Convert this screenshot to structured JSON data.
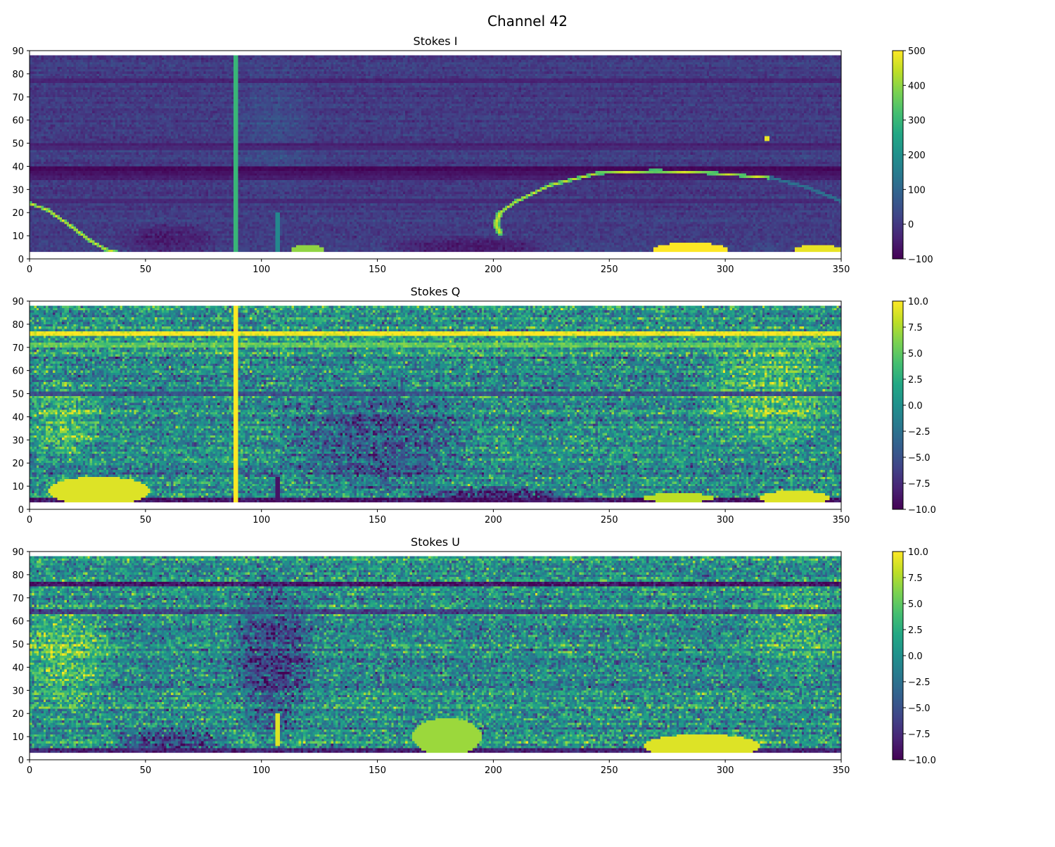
{
  "figure": {
    "suptitle": "Channel 42"
  },
  "chart_data": [
    {
      "type": "heatmap",
      "title": "Stokes I",
      "xlabel": "",
      "ylabel": "",
      "xlim": [
        0,
        350
      ],
      "ylim": [
        0,
        90
      ],
      "x_ticks": [
        0,
        50,
        100,
        150,
        200,
        250,
        300,
        350
      ],
      "y_ticks": [
        0,
        10,
        20,
        30,
        40,
        50,
        60,
        70,
        80,
        90
      ],
      "data_extent": {
        "x": [
          0,
          350
        ],
        "y": [
          3,
          88
        ]
      },
      "grid": false,
      "colormap": "viridis",
      "colorbar": {
        "range": [
          -100,
          500
        ],
        "ticks": [
          -100,
          0,
          100,
          200,
          300,
          400,
          500
        ],
        "tick_labels": [
          "−100",
          "0",
          "100",
          "200",
          "300",
          "400",
          "500"
        ]
      },
      "features": {
        "base_value": 5,
        "band_rows": [
          {
            "y": 38,
            "value": -90
          },
          {
            "y": 39,
            "value": -90
          },
          {
            "y": 37,
            "value": -70
          },
          {
            "y": 49,
            "value": -50
          },
          {
            "y": 48,
            "value": -30
          },
          {
            "y": 77,
            "value": -40
          },
          {
            "y": 35,
            "value": -50
          },
          {
            "y": 25,
            "value": -30
          }
        ],
        "arcs": [
          {
            "points": [
              [
                0,
                24
              ],
              [
                8,
                21
              ],
              [
                18,
                14
              ],
              [
                26,
                8
              ],
              [
                33,
                4
              ],
              [
                37,
                3
              ]
            ],
            "value": 480
          },
          {
            "points": [
              [
                203,
                11
              ],
              [
                201,
                15
              ],
              [
                203,
                20
              ],
              [
                210,
                25
              ],
              [
                225,
                32
              ],
              [
                245,
                37
              ],
              [
                270,
                38
              ],
              [
                295,
                37
              ],
              [
                320,
                35
              ]
            ],
            "value": 470
          },
          {
            "points": [
              [
                320,
                35
              ],
              [
                335,
                31
              ],
              [
                350,
                25
              ]
            ],
            "value": 140
          }
        ],
        "vertical_lines": [
          {
            "x": 89,
            "y": [
              3,
              88
            ],
            "value": 300
          },
          {
            "x": 107,
            "y": [
              3,
              20
            ],
            "value": 180
          }
        ],
        "blobs": [
          {
            "x": 285,
            "y": 4,
            "rx": 16,
            "ry": 3,
            "value": 500
          },
          {
            "x": 340,
            "y": 4,
            "rx": 10,
            "ry": 2,
            "value": 480
          },
          {
            "x": 120,
            "y": 4,
            "rx": 7,
            "ry": 2,
            "value": 400
          },
          {
            "x": 318,
            "y": 52,
            "rx": 1,
            "ry": 1,
            "value": 480
          }
        ],
        "dark_regions": [
          {
            "x": 190,
            "y": 5,
            "rx": 40,
            "ry": 5,
            "value": -80
          },
          {
            "x": 60,
            "y": 8,
            "rx": 25,
            "ry": 8,
            "value": -60
          }
        ],
        "bright_regions": [
          {
            "x": 105,
            "y": 55,
            "rx": 20,
            "ry": 35,
            "value": 40
          }
        ],
        "noise": 25
      }
    },
    {
      "type": "heatmap",
      "title": "Stokes Q",
      "xlabel": "",
      "ylabel": "",
      "xlim": [
        0,
        350
      ],
      "ylim": [
        0,
        90
      ],
      "x_ticks": [
        0,
        50,
        100,
        150,
        200,
        250,
        300,
        350
      ],
      "y_ticks": [
        0,
        10,
        20,
        30,
        40,
        50,
        60,
        70,
        80,
        90
      ],
      "data_extent": {
        "x": [
          0,
          350
        ],
        "y": [
          3,
          88
        ]
      },
      "grid": false,
      "colormap": "viridis",
      "colorbar": {
        "range": [
          -10,
          10
        ],
        "ticks": [
          -10,
          -7.5,
          -5,
          -2.5,
          0,
          2.5,
          5,
          7.5,
          10
        ],
        "tick_labels": [
          "−10.0",
          "−7.5",
          "−5.0",
          "−2.5",
          "0.0",
          "2.5",
          "5.0",
          "7.5",
          "10.0"
        ]
      },
      "features": {
        "base_value": 0,
        "band_rows": [
          {
            "y": 76,
            "value": 10
          },
          {
            "y": 71,
            "value": 5
          },
          {
            "y": 4,
            "value": -9
          },
          {
            "y": 50,
            "value": -5
          }
        ],
        "arcs": [],
        "vertical_lines": [
          {
            "x": 89,
            "y": [
              3,
              88
            ],
            "value": 10
          },
          {
            "x": 107,
            "y": [
              3,
              14
            ],
            "value": -9
          }
        ],
        "blobs": [
          {
            "x": 30,
            "y": 8,
            "rx": 22,
            "ry": 6,
            "value": 9
          },
          {
            "x": 330,
            "y": 5,
            "rx": 15,
            "ry": 3,
            "value": 9
          },
          {
            "x": 280,
            "y": 5,
            "rx": 15,
            "ry": 2,
            "value": 8
          }
        ],
        "dark_regions": [
          {
            "x": 200,
            "y": 6,
            "rx": 40,
            "ry": 4,
            "value": -9
          },
          {
            "x": 150,
            "y": 30,
            "rx": 45,
            "ry": 25,
            "value": -5
          }
        ],
        "bright_regions": [
          {
            "x": 320,
            "y": 50,
            "rx": 35,
            "ry": 25,
            "value": 5
          },
          {
            "x": 15,
            "y": 40,
            "rx": 20,
            "ry": 20,
            "value": 4
          }
        ],
        "noise": 4
      }
    },
    {
      "type": "heatmap",
      "title": "Stokes U",
      "xlabel": "",
      "ylabel": "",
      "xlim": [
        0,
        350
      ],
      "ylim": [
        0,
        90
      ],
      "x_ticks": [
        0,
        50,
        100,
        150,
        200,
        250,
        300,
        350
      ],
      "y_ticks": [
        0,
        10,
        20,
        30,
        40,
        50,
        60,
        70,
        80,
        90
      ],
      "data_extent": {
        "x": [
          0,
          350
        ],
        "y": [
          3,
          88
        ]
      },
      "grid": false,
      "colormap": "viridis",
      "colorbar": {
        "range": [
          -10,
          10
        ],
        "ticks": [
          -10,
          -7.5,
          -5,
          -2.5,
          0,
          2.5,
          5,
          7.5,
          10
        ],
        "tick_labels": [
          "−10.0",
          "−7.5",
          "−5.0",
          "−2.5",
          "0.0",
          "2.5",
          "5.0",
          "7.5",
          "10.0"
        ]
      },
      "features": {
        "base_value": 0,
        "band_rows": [
          {
            "y": 76,
            "value": -9
          },
          {
            "y": 64,
            "value": -6
          },
          {
            "y": 4,
            "value": -8
          }
        ],
        "arcs": [],
        "vertical_lines": [
          {
            "x": 107,
            "y": [
              6,
              20
            ],
            "value": 9
          }
        ],
        "blobs": [
          {
            "x": 290,
            "y": 6,
            "rx": 25,
            "ry": 5,
            "value": 9
          },
          {
            "x": 180,
            "y": 10,
            "rx": 15,
            "ry": 8,
            "value": 7
          }
        ],
        "dark_regions": [
          {
            "x": 105,
            "y": 45,
            "rx": 20,
            "ry": 40,
            "value": -6
          },
          {
            "x": 60,
            "y": 8,
            "rx": 30,
            "ry": 6,
            "value": -8
          }
        ],
        "bright_regions": [
          {
            "x": 15,
            "y": 45,
            "rx": 25,
            "ry": 25,
            "value": 5
          },
          {
            "x": 330,
            "y": 55,
            "rx": 25,
            "ry": 25,
            "value": 3
          }
        ],
        "noise": 4
      }
    }
  ]
}
